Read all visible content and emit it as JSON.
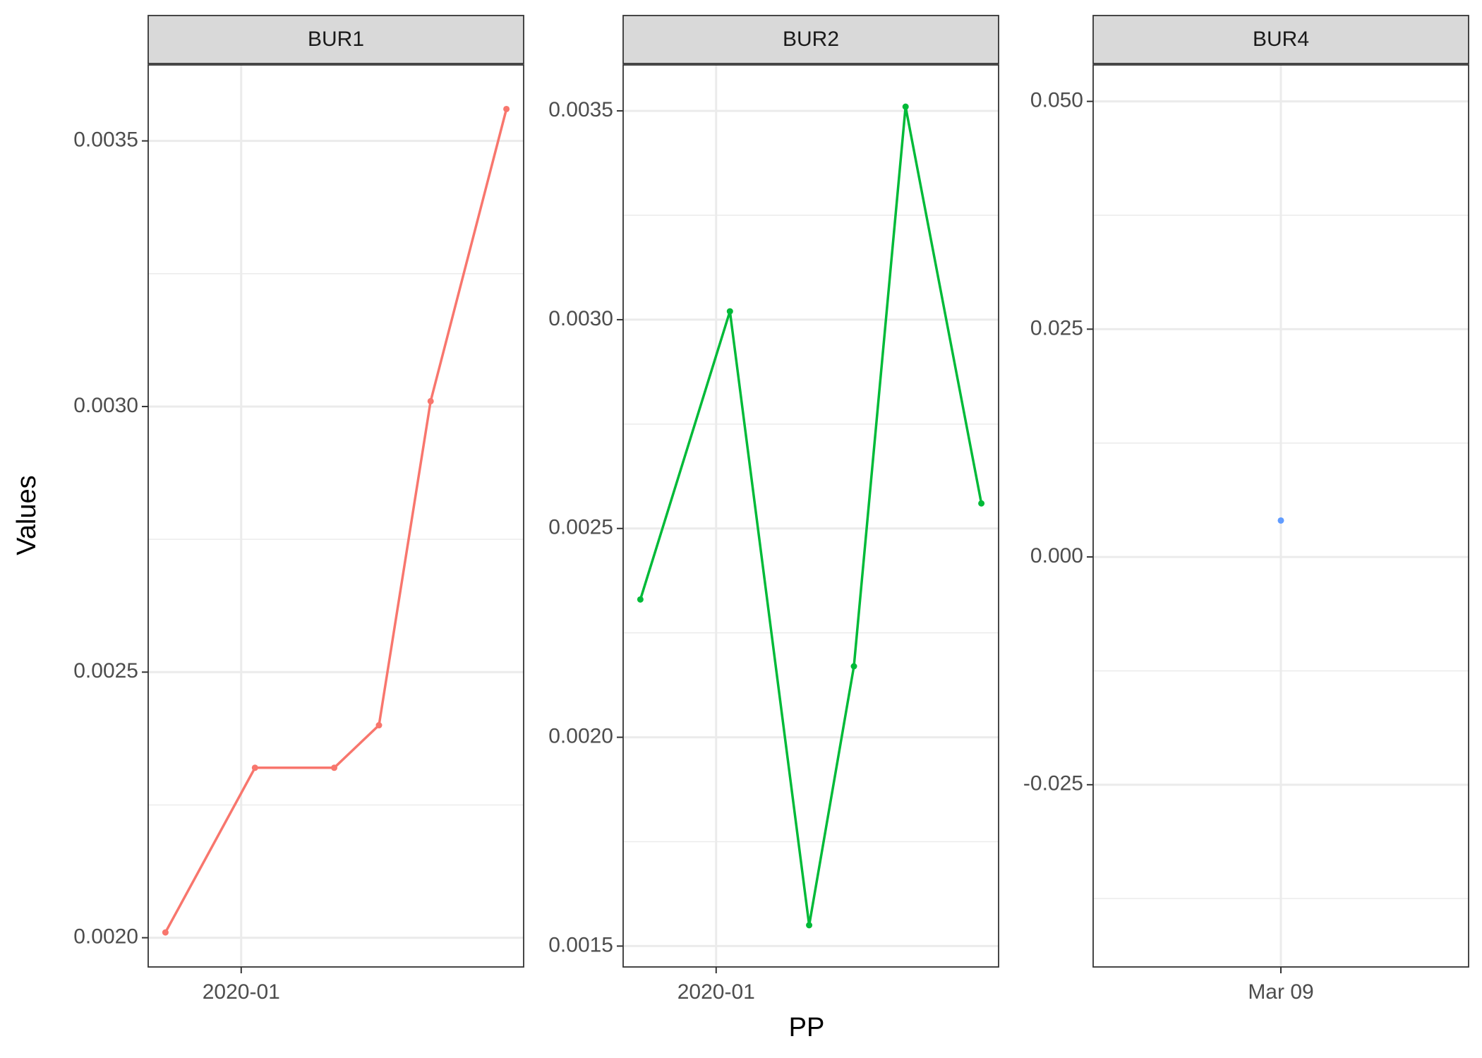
{
  "chart_data": {
    "type": "line",
    "xlabel": "PP",
    "ylabel": "Values",
    "grid": true,
    "legend": "none",
    "panels": [
      {
        "name": "BUR1",
        "color": "#F8766D",
        "x": [
          "2019-12-10",
          "2020-01-05",
          "2020-01-28",
          "2020-02-10",
          "2020-02-25",
          "2020-03-18"
        ],
        "values": [
          0.00201,
          0.00232,
          0.00232,
          0.0024,
          0.00301,
          0.00356
        ],
        "ylim": [
          0.001945,
          0.003643
        ],
        "yticks": [
          0.002,
          0.0025,
          0.003,
          0.0035
        ],
        "ytick_labels": [
          "0.0020",
          "0.0025",
          "0.0030",
          "0.0035"
        ],
        "xlim": [
          "2019-12-05",
          "2020-03-23"
        ],
        "xticks": [
          "2020-01-01"
        ],
        "xtick_labels": [
          "2020-01"
        ]
      },
      {
        "name": "BUR2",
        "color": "#00BA38",
        "x": [
          "2019-12-10",
          "2020-01-05",
          "2020-01-28",
          "2020-02-10",
          "2020-02-25",
          "2020-03-18"
        ],
        "values": [
          0.00233,
          0.00302,
          0.00155,
          0.00217,
          0.00351,
          0.00256
        ],
        "ylim": [
          0.00145,
          0.00361
        ],
        "yticks": [
          0.0015,
          0.002,
          0.0025,
          0.003,
          0.0035
        ],
        "ytick_labels": [
          "0.0015",
          "0.0020",
          "0.0025",
          "0.0030",
          "0.0035"
        ],
        "xlim": [
          "2019-12-05",
          "2020-03-23"
        ],
        "xticks": [
          "2020-01-01"
        ],
        "xtick_labels": [
          "2020-01"
        ]
      },
      {
        "name": "BUR4",
        "color": "#619CFF",
        "x": [
          "2020-03-09"
        ],
        "values": [
          0.004
        ],
        "ylim": [
          -0.045,
          0.054
        ],
        "yticks": [
          -0.025,
          0.0,
          0.025,
          0.05
        ],
        "ytick_labels": [
          "-0.025",
          "0.000",
          "0.025",
          "0.050"
        ],
        "xlim": [
          "2020-03-08",
          "2020-03-10"
        ],
        "xticks": [
          "2020-03-09"
        ],
        "xtick_labels": [
          "Mar 09"
        ]
      }
    ]
  }
}
